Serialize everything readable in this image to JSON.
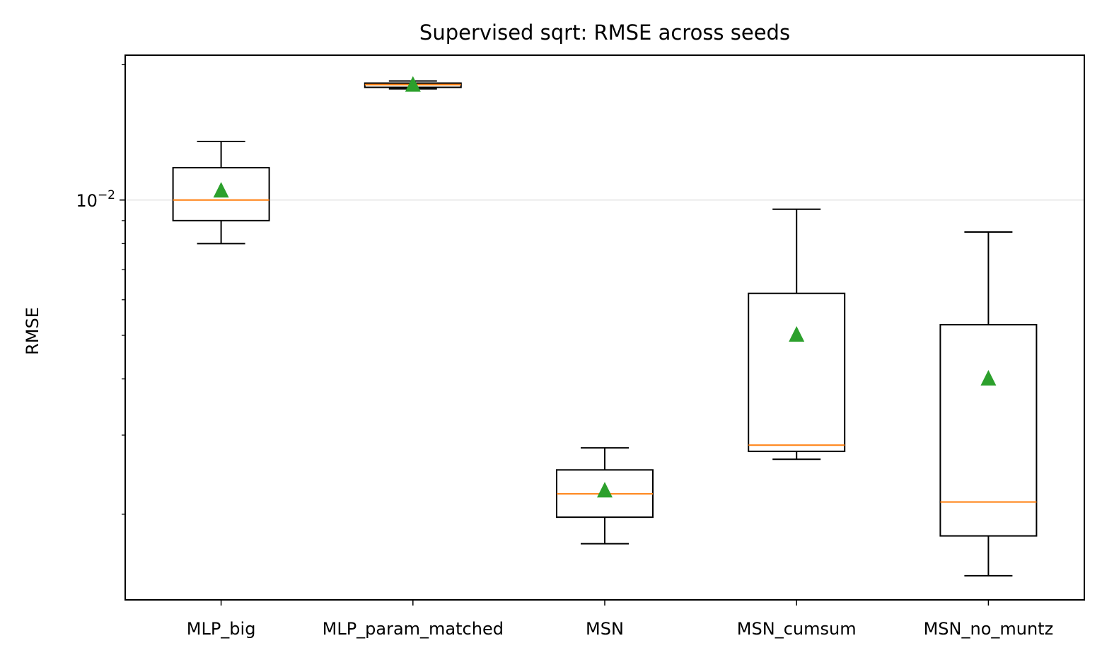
{
  "chart_data": {
    "type": "box",
    "title": "Supervised sqrt: RMSE across seeds",
    "xlabel": "",
    "ylabel": "RMSE",
    "yscale": "log",
    "ylim": [
      0.00129,
      0.021
    ],
    "ytick_labels": [
      {
        "value": 0.01,
        "base": "10",
        "exp": "−2"
      }
    ],
    "grid": "horizontal major only",
    "categories": [
      "MLP_big",
      "MLP_param_matched",
      "MSN",
      "MSN_cumsum",
      "MSN_no_muntz"
    ],
    "boxes": [
      {
        "name": "MLP_big",
        "whislo": 0.008,
        "q1": 0.009,
        "median": 0.01,
        "q3": 0.0118,
        "whishi": 0.0135,
        "mean": 0.0105
      },
      {
        "name": "MLP_param_matched",
        "whislo": 0.01767,
        "q1": 0.01781,
        "median": 0.01806,
        "q3": 0.0182,
        "whishi": 0.0184,
        "mean": 0.01806
      },
      {
        "name": "MSN",
        "whislo": 0.00172,
        "q1": 0.00197,
        "median": 0.00222,
        "q3": 0.00251,
        "whishi": 0.00281,
        "mean": 0.00226
      },
      {
        "name": "MSN_cumsum",
        "whislo": 0.00265,
        "q1": 0.00276,
        "median": 0.00285,
        "q3": 0.0062,
        "whishi": 0.00954,
        "mean": 0.00502
      },
      {
        "name": "MSN_no_muntz",
        "whislo": 0.00146,
        "q1": 0.00179,
        "median": 0.00213,
        "q3": 0.00528,
        "whishi": 0.00849,
        "mean": 0.00401
      }
    ],
    "colors": {
      "median": "#ff7f0e",
      "mean": "#2ca02c",
      "box": "#000000",
      "grid": "#e6e6e6"
    }
  }
}
